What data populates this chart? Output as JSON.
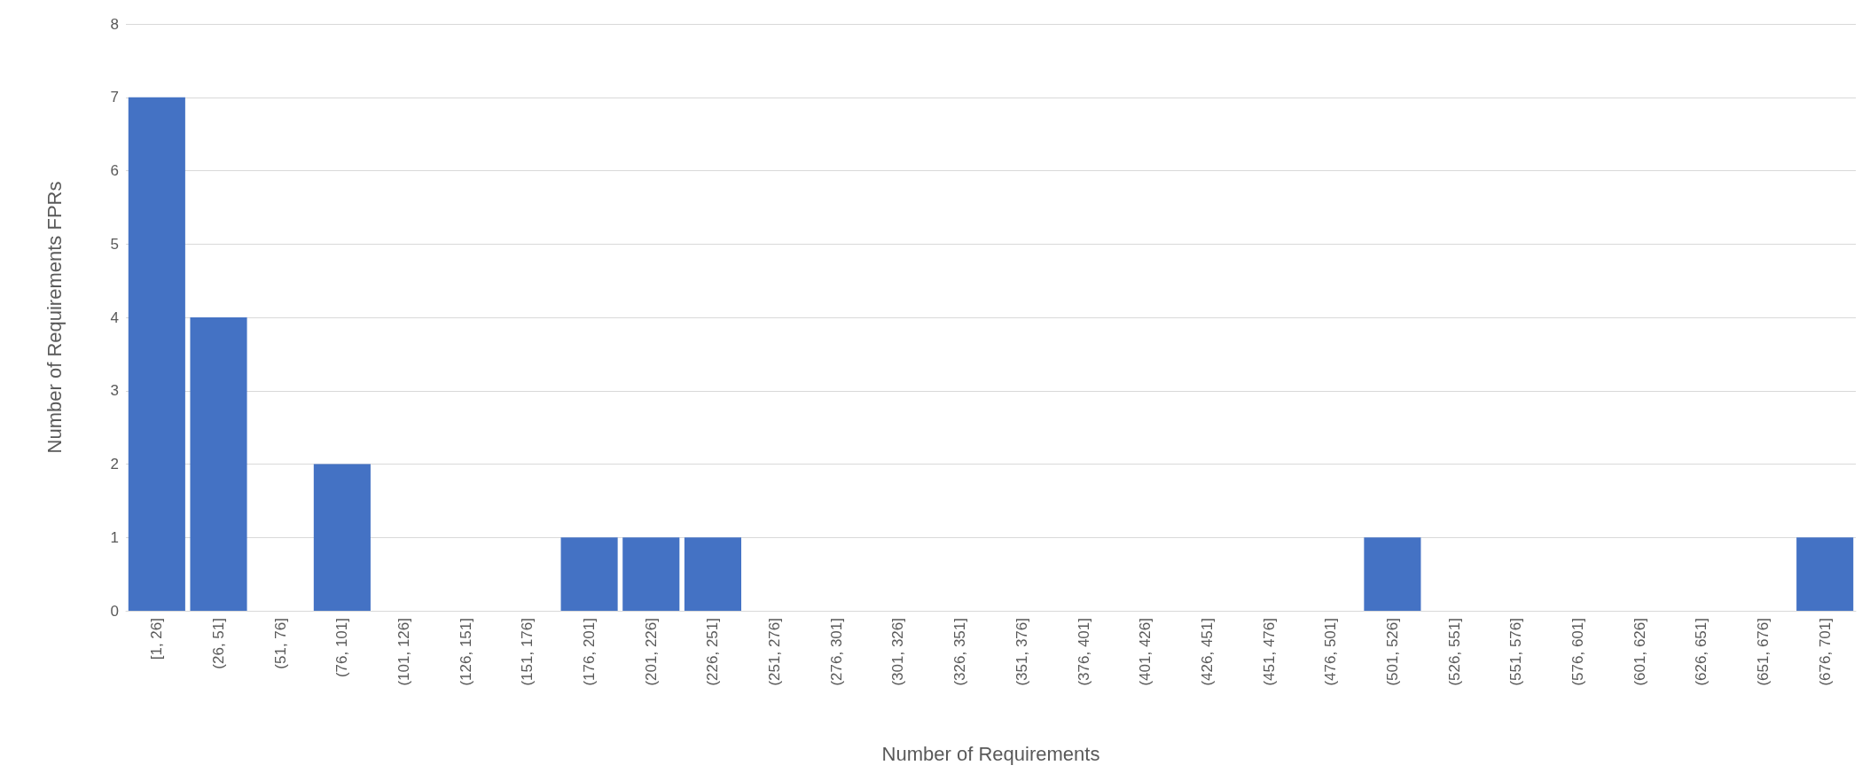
{
  "chart_data": {
    "type": "bar",
    "xlabel": "Number of Requirements",
    "ylabel": "Number of Requirements FPRs",
    "categories": [
      "[1, 26]",
      "(26, 51]",
      "(51, 76]",
      "(76, 101]",
      "(101, 126]",
      "(126, 151]",
      "(151, 176]",
      "(176, 201]",
      "(201, 226]",
      "(226, 251]",
      "(251, 276]",
      "(276, 301]",
      "(301, 326]",
      "(326, 351]",
      "(351, 376]",
      "(376, 401]",
      "(401, 426]",
      "(426, 451]",
      "(451, 476]",
      "(476, 501]",
      "(501, 526]",
      "(526, 551]",
      "(551, 576]",
      "(576, 601]",
      "(601, 626]",
      "(626, 651]",
      "(651, 676]",
      "(676, 701]"
    ],
    "values": [
      7,
      4,
      0,
      2,
      0,
      0,
      0,
      1,
      1,
      1,
      0,
      0,
      0,
      0,
      0,
      0,
      0,
      0,
      0,
      0,
      1,
      0,
      0,
      0,
      0,
      0,
      0,
      1
    ],
    "color": "#4472c4",
    "ylim": [
      0,
      8
    ],
    "yticks": [
      0,
      1,
      2,
      3,
      4,
      5,
      6,
      7,
      8
    ],
    "grid": "y"
  }
}
